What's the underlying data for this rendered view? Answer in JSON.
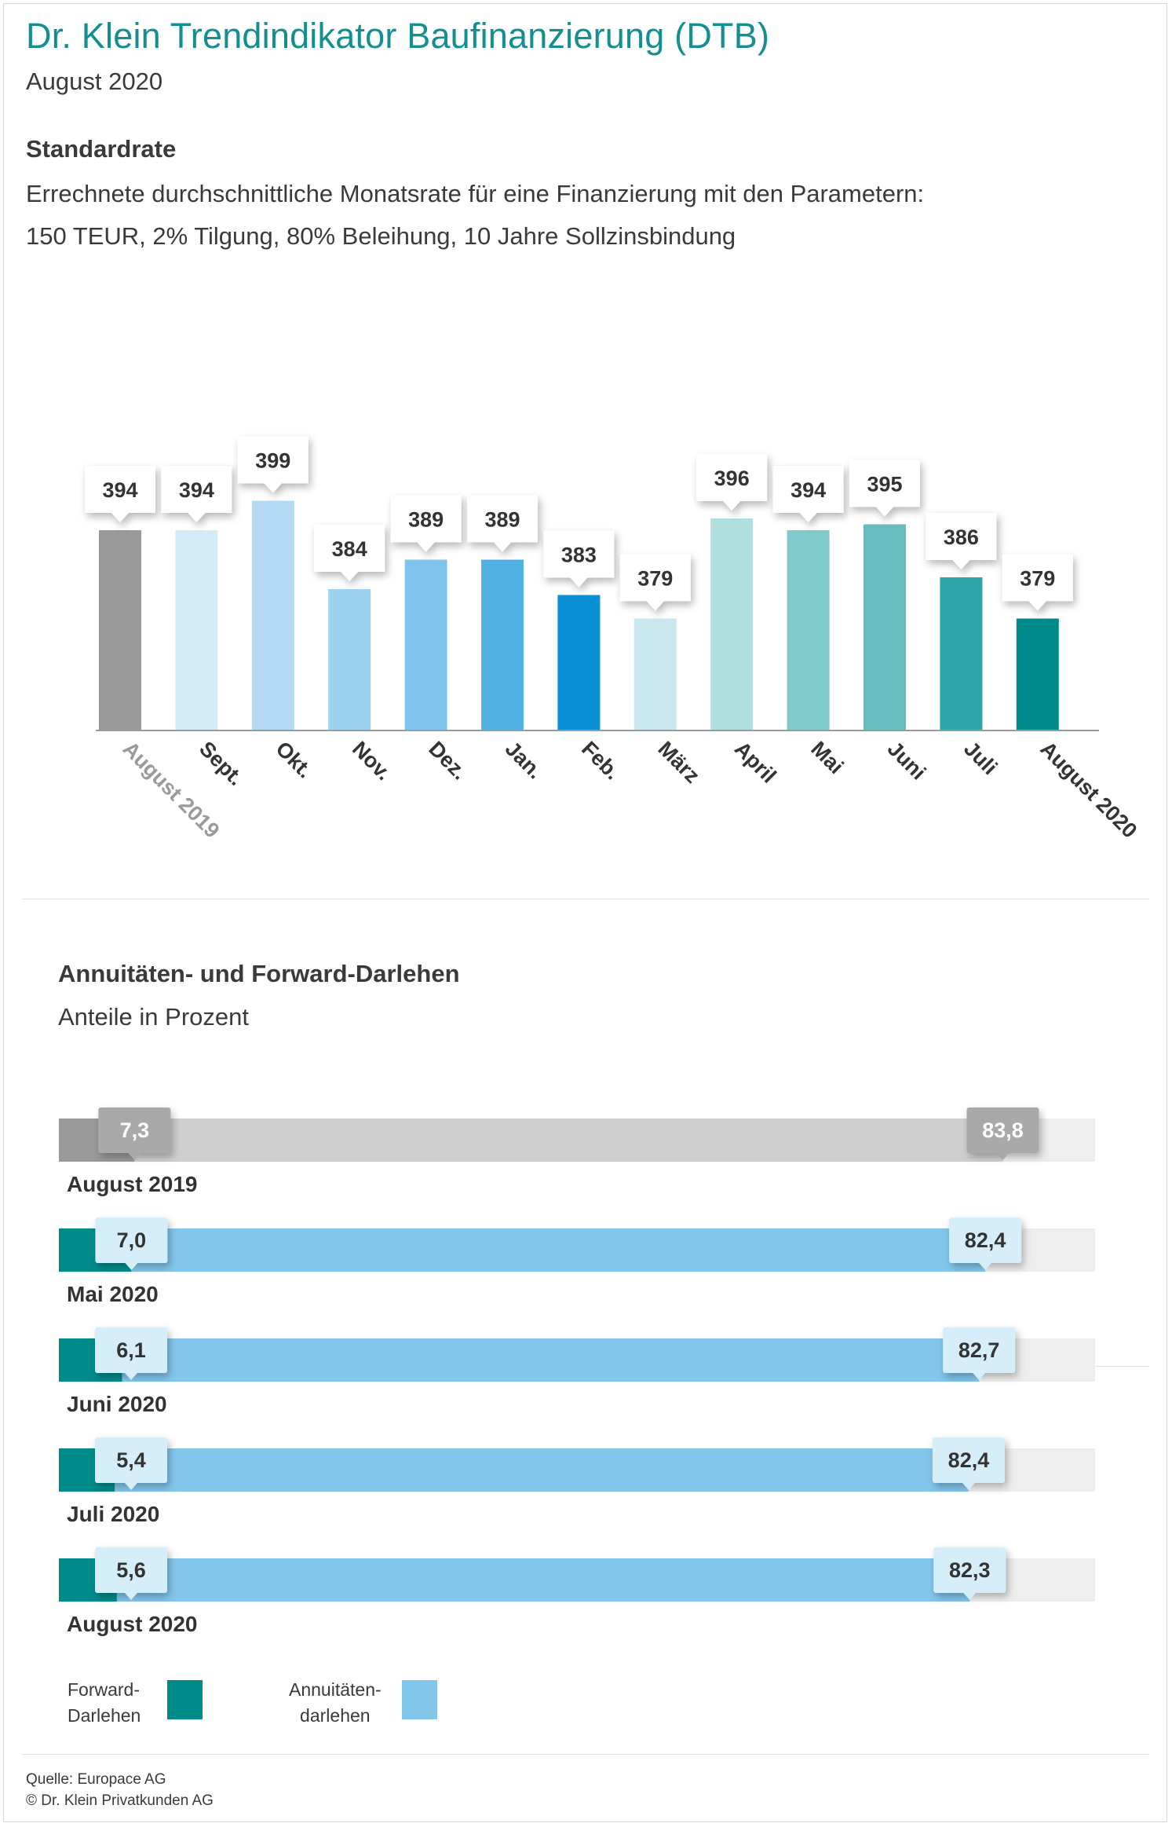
{
  "header": {
    "title": "Dr. Klein Trendindikator Baufinanzierung (DTB)",
    "subtitle": "August 2020"
  },
  "section1": {
    "title": "Standardrate",
    "line1": "Errechnete durchschnittliche Monatsrate für eine Finanzierung mit den Parametern:",
    "line2": "150 TEUR, 2% Tilgung, 80% Beleihung, 10 Jahre Sollzinsbindung"
  },
  "section2": {
    "title": "Annuitäten- und Forward-Darlehen",
    "subtitle": "Anteile in Prozent"
  },
  "legend": {
    "forward_line1": "Forward-",
    "forward_line2": "Darlehen",
    "annuitaeten_line1": "Annuitäten-",
    "annuitaeten_line2": "darlehen"
  },
  "footer": {
    "source": "Quelle: Europace AG",
    "copyright": "© Dr. Klein Privatkunden AG"
  },
  "colors": {
    "title": "#138f92",
    "forward": "#008b8b",
    "annuitaeten": "#83c6ec",
    "track": "#eeeeee",
    "gray_primary": "#9a9a9a",
    "gray_secondary": "#cfcfcf"
  },
  "chart_data": [
    {
      "type": "bar",
      "title": "Standardrate",
      "categories": [
        "August 2019",
        "Sept.",
        "Okt.",
        "Nov.",
        "Dez.",
        "Jan.",
        "Feb.",
        "März",
        "April",
        "Mai",
        "Juni",
        "Juli",
        "August 2020"
      ],
      "values": [
        394,
        394,
        399,
        384,
        389,
        389,
        383,
        379,
        396,
        394,
        395,
        386,
        379
      ],
      "colors": [
        "#9a9a9a",
        "#d3ecf8",
        "#b4dbf3",
        "#9dd2f1",
        "#7fc4ec",
        "#51b0e4",
        "#0a90d6",
        "#c9e7ee",
        "#b1dfe0",
        "#80c9cc",
        "#67bcbe",
        "#2fa5a8",
        "#008b8b"
      ],
      "xlabel": "",
      "ylabel": "",
      "ylim": [
        360,
        402
      ],
      "grid": false,
      "legend": "none"
    },
    {
      "type": "bar",
      "orientation": "horizontal",
      "title": "Annuitäten- und Forward-Darlehen",
      "subtitle": "Anteile in Prozent",
      "categories": [
        "August 2019",
        "Mai 2020",
        "Juni 2020",
        "Juli 2020",
        "August 2020"
      ],
      "series": [
        {
          "name": "Forward-Darlehen",
          "values": [
            7.3,
            7.0,
            6.1,
            5.4,
            5.6
          ]
        },
        {
          "name": "Annuitätendarlehen",
          "values": [
            83.8,
            82.4,
            82.7,
            82.4,
            82.3
          ]
        }
      ],
      "value_labels": {
        "forward": [
          "7,3",
          "7,0",
          "6,1",
          "5,4",
          "5,6"
        ],
        "annuitaeten": [
          "83,8",
          "82,4",
          "82,7",
          "82,4",
          "82,3"
        ]
      },
      "xlim": [
        0,
        100
      ],
      "grid": false,
      "legend": "bottom-left"
    }
  ]
}
